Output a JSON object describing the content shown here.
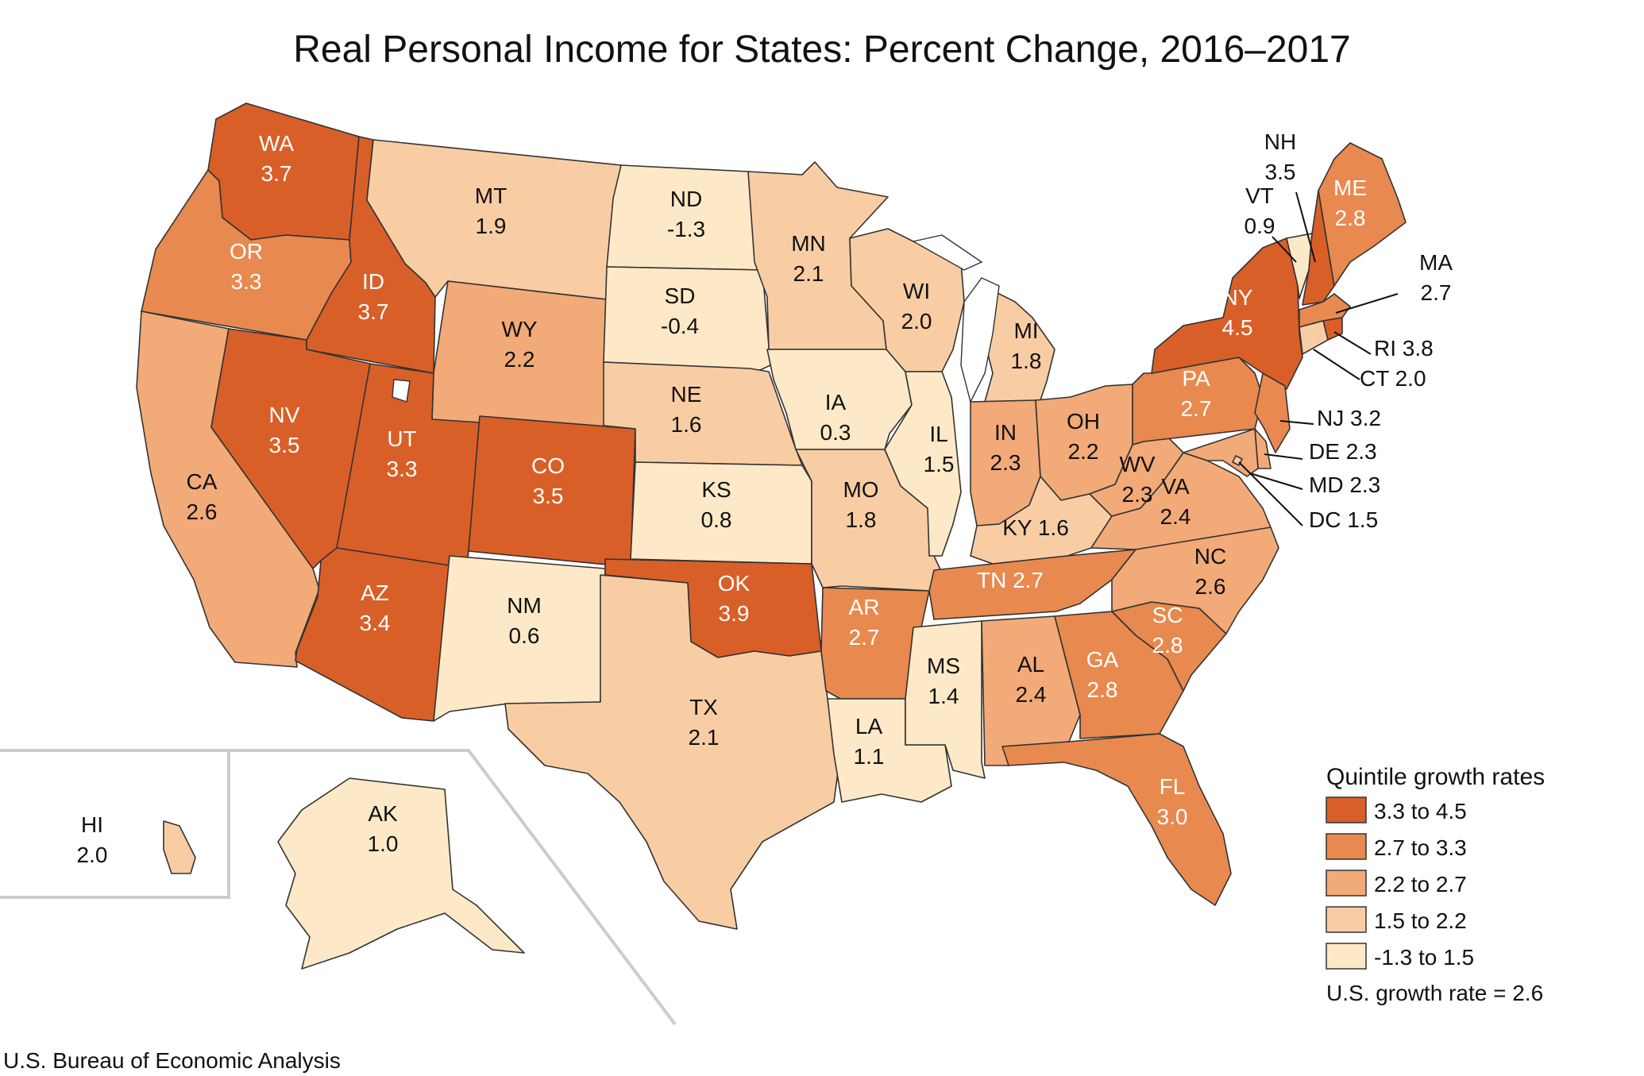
{
  "title": "Real Personal Income for States: Percent Change, 2016–2017",
  "source": "U.S. Bureau of Economic Analysis",
  "legend": {
    "title": "Quintile growth rates",
    "classes": [
      {
        "label": "3.3 to 4.5",
        "color": "#d95f28"
      },
      {
        "label": "2.7 to 3.3",
        "color": "#e8894f"
      },
      {
        "label": "2.2 to 2.7",
        "color": "#f2aa78"
      },
      {
        "label": "1.5 to 2.2",
        "color": "#f9cda3"
      },
      {
        "label": "-1.3 to 1.5",
        "color": "#fde9c7"
      }
    ],
    "us_rate": "U.S. growth rate = 2.6"
  },
  "states": [
    {
      "abbr": "WA",
      "value": "3.7",
      "class": 0
    },
    {
      "abbr": "OR",
      "value": "3.3",
      "class": 1
    },
    {
      "abbr": "CA",
      "value": "2.6",
      "class": 2
    },
    {
      "abbr": "ID",
      "value": "3.7",
      "class": 0
    },
    {
      "abbr": "NV",
      "value": "3.5",
      "class": 0
    },
    {
      "abbr": "MT",
      "value": "1.9",
      "class": 3
    },
    {
      "abbr": "WY",
      "value": "2.2",
      "class": 2
    },
    {
      "abbr": "UT",
      "value": "3.3",
      "class": 0
    },
    {
      "abbr": "AZ",
      "value": "3.4",
      "class": 0
    },
    {
      "abbr": "CO",
      "value": "3.5",
      "class": 0
    },
    {
      "abbr": "NM",
      "value": "0.6",
      "class": 4
    },
    {
      "abbr": "ND",
      "value": "-1.3",
      "class": 4
    },
    {
      "abbr": "SD",
      "value": "-0.4",
      "class": 4
    },
    {
      "abbr": "NE",
      "value": "1.6",
      "class": 3
    },
    {
      "abbr": "KS",
      "value": "0.8",
      "class": 4
    },
    {
      "abbr": "OK",
      "value": "3.9",
      "class": 0
    },
    {
      "abbr": "TX",
      "value": "2.1",
      "class": 3
    },
    {
      "abbr": "MN",
      "value": "2.1",
      "class": 3
    },
    {
      "abbr": "IA",
      "value": "0.3",
      "class": 4
    },
    {
      "abbr": "MO",
      "value": "1.8",
      "class": 3
    },
    {
      "abbr": "AR",
      "value": "2.7",
      "class": 1
    },
    {
      "abbr": "LA",
      "value": "1.1",
      "class": 4
    },
    {
      "abbr": "WI",
      "value": "2.0",
      "class": 3
    },
    {
      "abbr": "IL",
      "value": "1.5",
      "class": 4
    },
    {
      "abbr": "MI",
      "value": "1.8",
      "class": 3
    },
    {
      "abbr": "IN",
      "value": "2.3",
      "class": 2
    },
    {
      "abbr": "OH",
      "value": "2.2",
      "class": 2
    },
    {
      "abbr": "KY",
      "value": "1.6",
      "class": 3
    },
    {
      "abbr": "TN",
      "value": "2.7",
      "class": 1
    },
    {
      "abbr": "MS",
      "value": "1.4",
      "class": 4
    },
    {
      "abbr": "AL",
      "value": "2.4",
      "class": 2
    },
    {
      "abbr": "GA",
      "value": "2.8",
      "class": 1
    },
    {
      "abbr": "FL",
      "value": "3.0",
      "class": 1
    },
    {
      "abbr": "SC",
      "value": "2.8",
      "class": 1
    },
    {
      "abbr": "NC",
      "value": "2.6",
      "class": 2
    },
    {
      "abbr": "VA",
      "value": "2.4",
      "class": 2
    },
    {
      "abbr": "WV",
      "value": "2.3",
      "class": 2
    },
    {
      "abbr": "PA",
      "value": "2.7",
      "class": 1
    },
    {
      "abbr": "NY",
      "value": "4.5",
      "class": 0
    },
    {
      "abbr": "VT",
      "value": "0.9",
      "class": 4
    },
    {
      "abbr": "NH",
      "value": "3.5",
      "class": 0
    },
    {
      "abbr": "ME",
      "value": "2.8",
      "class": 1
    },
    {
      "abbr": "MA",
      "value": "2.7",
      "class": 1
    },
    {
      "abbr": "RI",
      "value": "3.8",
      "class": 0
    },
    {
      "abbr": "CT",
      "value": "2.0",
      "class": 3
    },
    {
      "abbr": "NJ",
      "value": "3.2",
      "class": 1
    },
    {
      "abbr": "DE",
      "value": "2.3",
      "class": 2
    },
    {
      "abbr": "MD",
      "value": "2.3",
      "class": 2
    },
    {
      "abbr": "DC",
      "value": "1.5",
      "class": 3
    },
    {
      "abbr": "AK",
      "value": "1.0",
      "class": 4
    },
    {
      "abbr": "HI",
      "value": "2.0",
      "class": 3
    }
  ]
}
